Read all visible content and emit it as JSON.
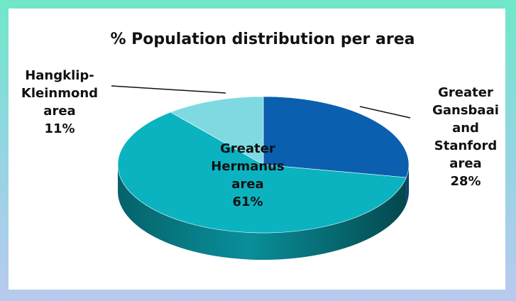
{
  "chart_data": {
    "type": "pie",
    "title": "% Population distribution per area",
    "three_d": true,
    "slices": [
      {
        "lines": [
          "Greater",
          "Gansbaai",
          "and",
          "Stanford",
          "area"
        ],
        "percent_label": "28%",
        "value": 28,
        "color": "#0a5faf"
      },
      {
        "lines": [
          "Greater",
          "Hermanus",
          "area"
        ],
        "percent_label": "61%",
        "value": 61,
        "color": "#0bb3c0"
      },
      {
        "lines": [
          "Hangklip-",
          "Kleinmond",
          "area"
        ],
        "percent_label": "11%",
        "value": 11,
        "color": "#7fd9e0"
      }
    ],
    "legend": "none"
  }
}
